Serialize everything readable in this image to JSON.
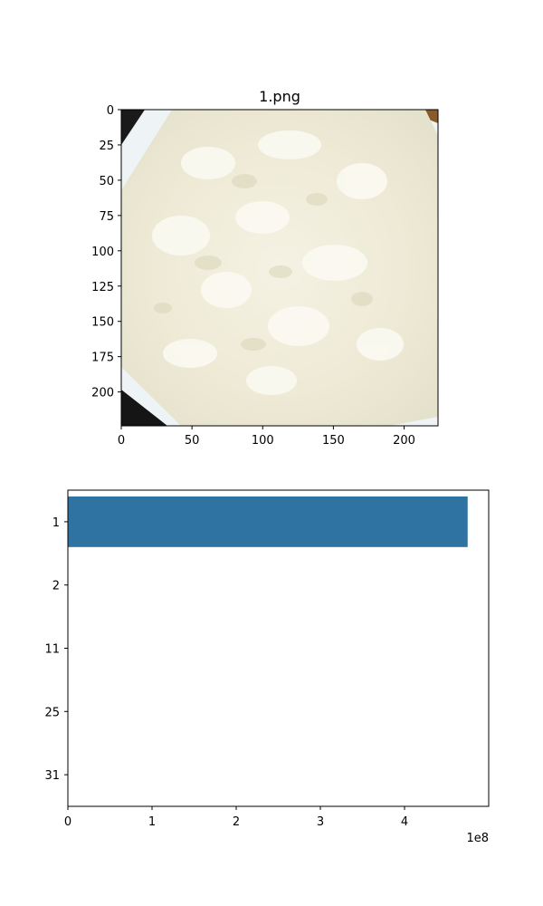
{
  "chart_data": [
    {
      "type": "image",
      "title": "1.png",
      "xlim": [
        0,
        224
      ],
      "ylim": [
        224,
        0
      ],
      "xticks": [
        0,
        50,
        100,
        150,
        200
      ],
      "yticks": [
        0,
        25,
        50,
        75,
        100,
        125,
        150,
        175,
        200
      ],
      "image_content": "close-up photo of cooked white rice in a white container"
    },
    {
      "type": "bar",
      "orientation": "horizontal",
      "categories": [
        "1",
        "2",
        "11",
        "25",
        "31"
      ],
      "values": [
        475000000,
        0,
        0,
        0,
        0
      ],
      "xlim": [
        0,
        500000000
      ],
      "xticks": [
        0,
        1,
        2,
        3,
        4
      ],
      "x_tick_labels": [
        "0",
        "1",
        "2",
        "3",
        "4"
      ],
      "x_offset_label": "1e8",
      "bar_color": "#2f73a3",
      "title": "",
      "xlabel": "",
      "ylabel": ""
    }
  ]
}
